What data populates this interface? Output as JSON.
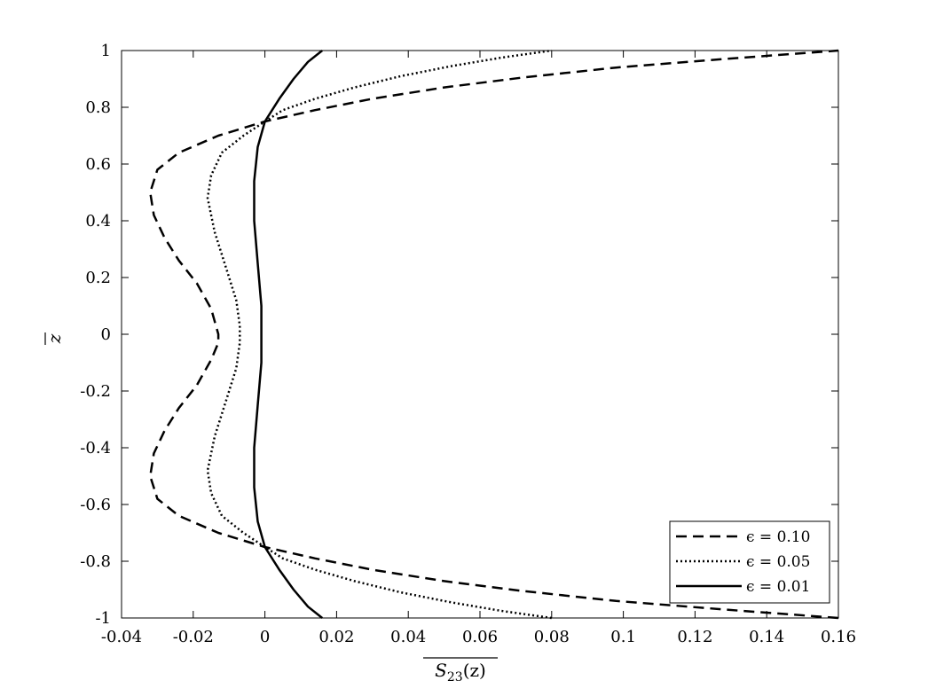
{
  "chart_data": {
    "type": "line",
    "title": "",
    "xlabel": "S23(z)",
    "xlabel_main": "S",
    "xlabel_sub": "23",
    "xlabel_tail": "(z)",
    "ylabel": "z",
    "xlim": [
      -0.04,
      0.16
    ],
    "ylim": [
      -1,
      1
    ],
    "xticks": [
      "-0.04",
      "-0.02",
      "0",
      "0.02",
      "0.04",
      "0.06",
      "0.08",
      "0.1",
      "0.12",
      "0.14",
      "0.16"
    ],
    "yticks": [
      "-1",
      "-0.8",
      "-0.6",
      "-0.4",
      "-0.2",
      "0",
      "0.2",
      "0.4",
      "0.6",
      "0.8",
      "1"
    ],
    "grid": false,
    "legend_position": "bottom-right",
    "series": [
      {
        "name": "ϵ = 0.10",
        "style": "dashed",
        "x": [
          0.16,
          0.128,
          0.098,
          0.072,
          0.05,
          0.03,
          0.014,
          0.0,
          -0.013,
          -0.024,
          -0.03,
          -0.032,
          -0.031,
          -0.028,
          -0.024,
          -0.019,
          -0.015,
          -0.013,
          -0.013,
          -0.015,
          -0.019,
          -0.024,
          -0.028,
          -0.031,
          -0.032,
          -0.03,
          -0.024,
          -0.013,
          0.0,
          0.014,
          0.03,
          0.05,
          0.072,
          0.098,
          0.128,
          0.16
        ],
        "y": [
          -1.0,
          -0.97,
          -0.94,
          -0.905,
          -0.87,
          -0.83,
          -0.79,
          -0.75,
          -0.7,
          -0.64,
          -0.58,
          -0.5,
          -0.42,
          -0.34,
          -0.26,
          -0.18,
          -0.09,
          -0.03,
          0.0,
          0.09,
          0.18,
          0.26,
          0.34,
          0.42,
          0.5,
          0.58,
          0.64,
          0.7,
          0.75,
          0.79,
          0.83,
          0.87,
          0.905,
          0.94,
          0.97,
          1.0
        ]
      },
      {
        "name": "ϵ = 0.05",
        "style": "dotted",
        "x": [
          0.08,
          0.066,
          0.052,
          0.038,
          0.025,
          0.014,
          0.005,
          0.0,
          -0.006,
          -0.012,
          -0.015,
          -0.016,
          -0.014,
          -0.011,
          -0.008,
          -0.007,
          -0.007,
          -0.008,
          -0.011,
          -0.014,
          -0.016,
          -0.015,
          -0.012,
          -0.006,
          0.0,
          0.005,
          0.014,
          0.025,
          0.038,
          0.052,
          0.066,
          0.08
        ],
        "y": [
          -1.0,
          -0.975,
          -0.945,
          -0.91,
          -0.87,
          -0.83,
          -0.79,
          -0.75,
          -0.7,
          -0.64,
          -0.56,
          -0.48,
          -0.36,
          -0.24,
          -0.12,
          -0.03,
          0.03,
          0.12,
          0.24,
          0.36,
          0.48,
          0.56,
          0.64,
          0.7,
          0.75,
          0.79,
          0.83,
          0.87,
          0.91,
          0.945,
          0.975,
          1.0
        ]
      },
      {
        "name": "ϵ = 0.01",
        "style": "solid",
        "x": [
          0.016,
          0.012,
          0.008,
          0.004,
          0.0,
          -0.002,
          -0.003,
          -0.003,
          -0.002,
          -0.001,
          -0.001,
          -0.002,
          -0.003,
          -0.003,
          -0.002,
          0.0,
          0.004,
          0.008,
          0.012,
          0.016
        ],
        "y": [
          -1.0,
          -0.96,
          -0.9,
          -0.83,
          -0.75,
          -0.66,
          -0.54,
          -0.4,
          -0.25,
          -0.1,
          0.1,
          0.25,
          0.4,
          0.54,
          0.66,
          0.75,
          0.83,
          0.9,
          0.96,
          1.0
        ]
      }
    ]
  }
}
